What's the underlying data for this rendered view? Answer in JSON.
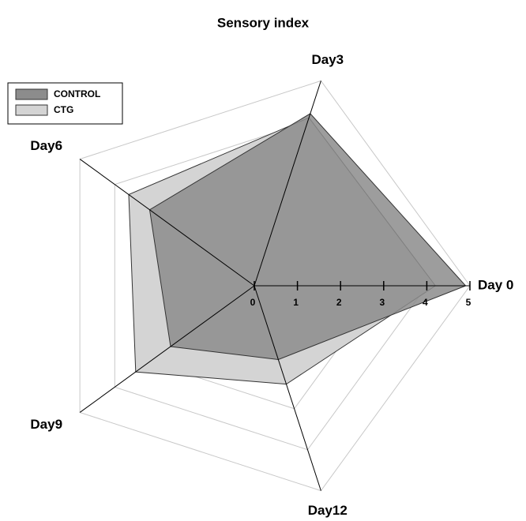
{
  "chart_data": {
    "type": "radar",
    "title": "Sensory index",
    "categories": [
      "Day 0",
      "Day3",
      "Day6",
      "Day9",
      "Day12"
    ],
    "series": [
      {
        "name": "CONTROL",
        "color": "#8c8c8c",
        "values": [
          4.9,
          4.2,
          3.0,
          2.4,
          1.8
        ]
      },
      {
        "name": "CTG",
        "color": "#d4d4d4",
        "values": [
          4.2,
          4.1,
          3.6,
          3.4,
          2.4
        ]
      }
    ],
    "rlim": [
      0,
      5
    ],
    "rticks": [
      0,
      1,
      2,
      3,
      4,
      5
    ],
    "grid": true,
    "legend": "upper left"
  }
}
